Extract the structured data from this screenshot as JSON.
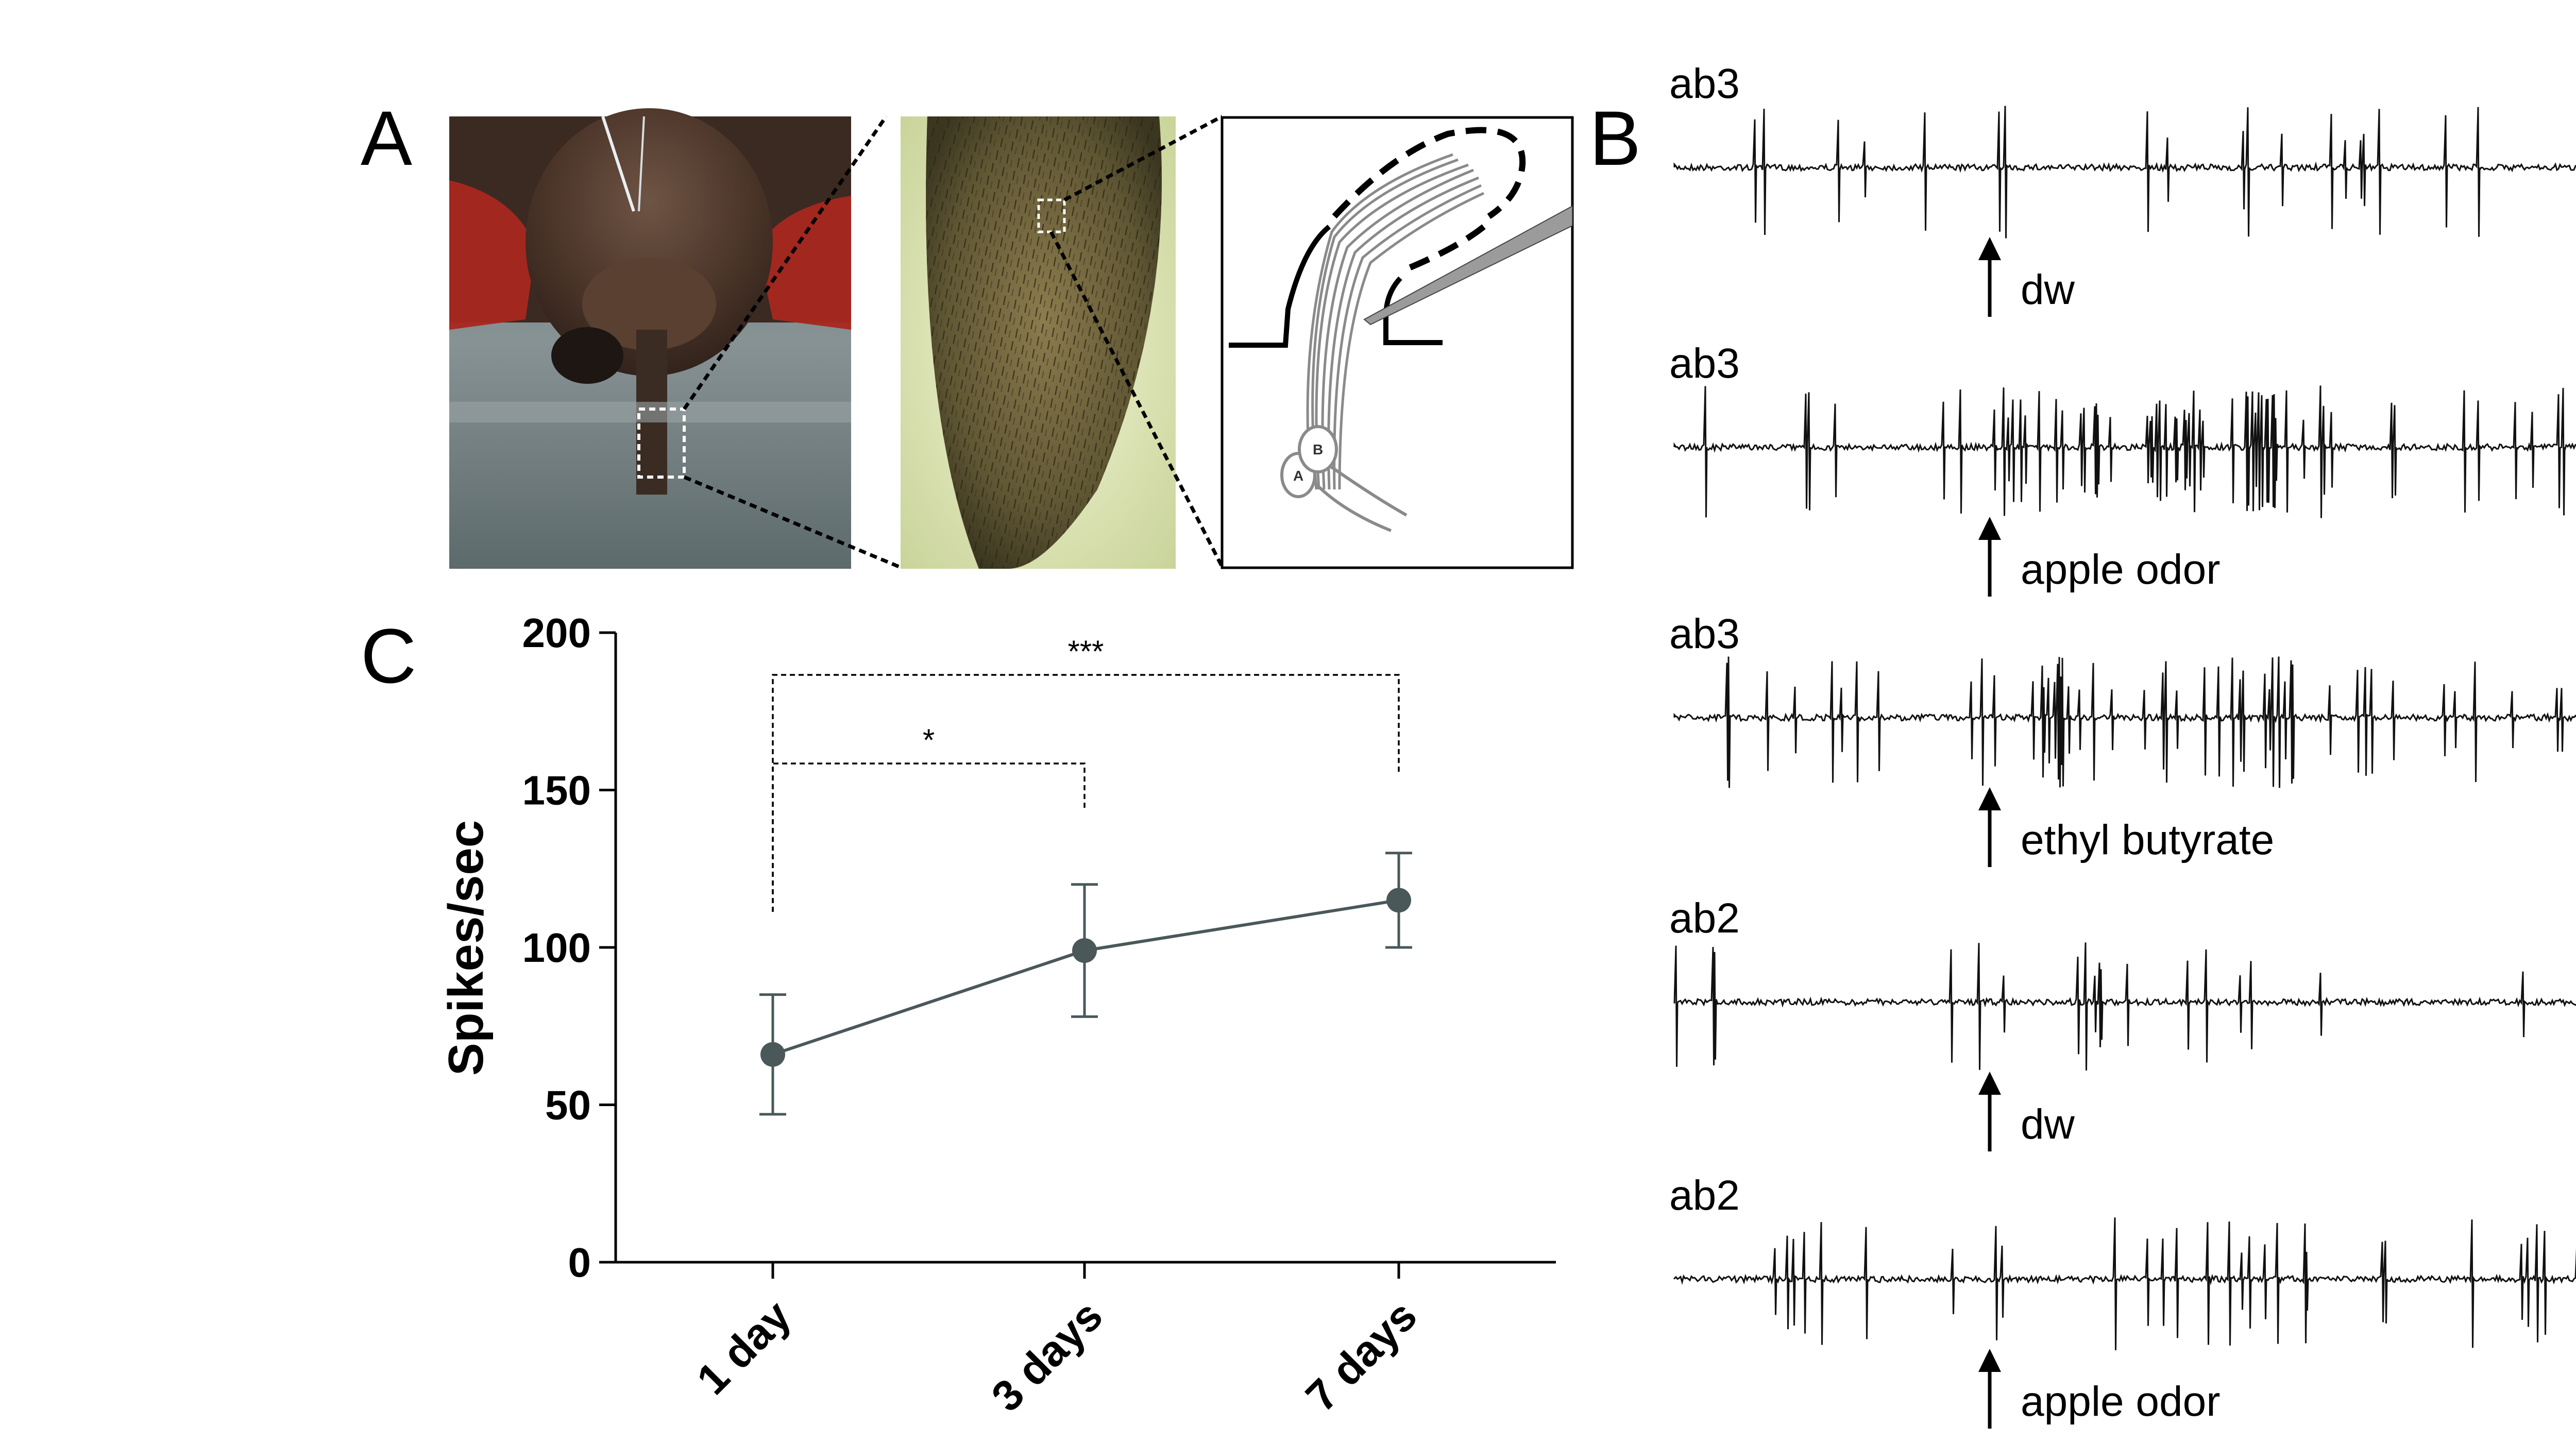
{
  "panels": {
    "a": "A",
    "b": "B",
    "c": "C"
  },
  "schematic": {
    "neuron_a": "A",
    "neuron_b": "B"
  },
  "traces": [
    {
      "sensillum": "ab3",
      "stimulus": "dw",
      "response": "low"
    },
    {
      "sensillum": "ab3",
      "stimulus": "apple odor",
      "response": "high"
    },
    {
      "sensillum": "ab3",
      "stimulus": "ethyl butyrate",
      "response": "high"
    },
    {
      "sensillum": "ab2",
      "stimulus": "dw",
      "response": "low"
    },
    {
      "sensillum": "ab2",
      "stimulus": "apple odor",
      "response": "medium"
    }
  ],
  "chart_data": {
    "type": "line",
    "title": "",
    "xlabel": "",
    "ylabel": "Spikes/sec",
    "categories": [
      "1 day",
      "3 days",
      "7 days"
    ],
    "values": [
      66,
      99,
      115
    ],
    "error_upper": [
      85,
      120,
      130
    ],
    "error_lower": [
      47,
      78,
      100
    ],
    "yticks": [
      0,
      50,
      100,
      150,
      200
    ],
    "ylim": [
      0,
      200
    ],
    "color": "#4a5859",
    "significance": [
      {
        "from": "1 day",
        "to": "3 days",
        "label": "*"
      },
      {
        "from": "1 day",
        "to": "7 days",
        "label": "***"
      }
    ]
  }
}
